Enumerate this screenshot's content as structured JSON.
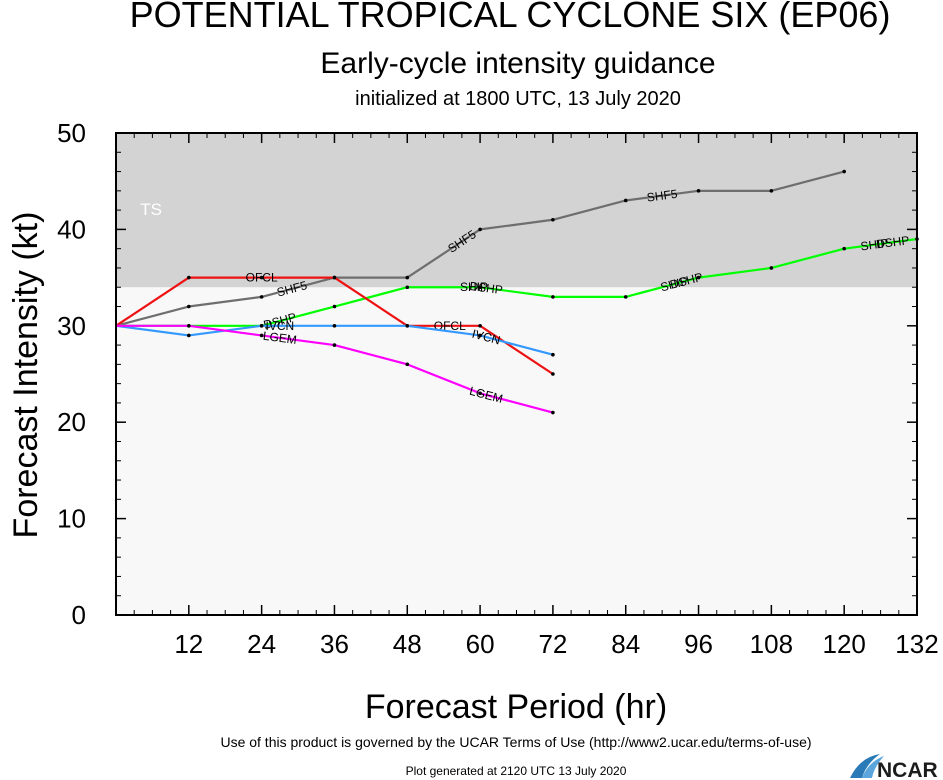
{
  "header": {
    "title": "POTENTIAL TROPICAL CYCLONE SIX (EP06)",
    "subtitle": "Early-cycle intensity guidance",
    "init_line": "initialized at 1800 UTC, 13 July 2020"
  },
  "footer": {
    "terms": "Use of this product is governed by the UCAR Terms of Use (http://www2.ucar.edu/terms-of-use)",
    "generated": "Plot generated at 2120 UTC   13 July 2020",
    "logo_text": "NCAR"
  },
  "chart_data": {
    "type": "line",
    "xlabel": "Forecast Period (hr)",
    "ylabel": "Forecast Intensity (kt)",
    "xlim": [
      0,
      132
    ],
    "ylim": [
      0,
      50
    ],
    "xticks": [
      12,
      24,
      36,
      48,
      60,
      72,
      84,
      96,
      108,
      120,
      132
    ],
    "yticks": [
      0,
      10,
      20,
      30,
      40,
      50
    ],
    "bands": [
      {
        "label": "TS",
        "from": 34,
        "to": 50,
        "color": "#d3d3d3"
      }
    ],
    "below_band_color": "#f8f8f8",
    "series": [
      {
        "name": "SHF5",
        "color": "#6e6e6e",
        "x": [
          0,
          12,
          24,
          36,
          48,
          60,
          72,
          84,
          96,
          108,
          120
        ],
        "values": [
          30,
          32,
          33,
          35,
          35,
          40,
          41,
          43,
          44,
          44,
          46
        ],
        "label_x": [
          29,
          57,
          90
        ]
      },
      {
        "name": "DSHP",
        "color": "#00ff00",
        "x": [
          0,
          12,
          24,
          36,
          48,
          60,
          72,
          84,
          96,
          108,
          120,
          132
        ],
        "values": [
          30,
          30,
          30,
          32,
          34,
          34,
          33,
          33,
          35,
          36,
          38,
          39
        ],
        "label_x": [
          27,
          61,
          94,
          128
        ]
      },
      {
        "name": "SHIP",
        "color": "#00ff00",
        "x": [
          60,
          96,
          120
        ],
        "values": [
          34,
          35,
          38
        ],
        "label_x": [
          59,
          92,
          125
        ],
        "labels_only": true
      },
      {
        "name": "OFCL",
        "color": "#ee1111",
        "x": [
          0,
          12,
          24,
          36,
          48,
          60,
          72
        ],
        "values": [
          30,
          35,
          35,
          35,
          30,
          30,
          25
        ],
        "label_x": [
          24,
          55
        ]
      },
      {
        "name": "IVCN",
        "color": "#3399ff",
        "x": [
          0,
          12,
          24,
          36,
          48,
          60,
          72
        ],
        "values": [
          30,
          29,
          30,
          30,
          30,
          29,
          27
        ],
        "label_x": [
          27,
          61
        ]
      },
      {
        "name": "LGEM",
        "color": "#ff00ff",
        "x": [
          0,
          12,
          24,
          36,
          48,
          60,
          72
        ],
        "values": [
          30,
          30,
          29,
          28,
          26,
          23,
          21
        ],
        "label_x": [
          27,
          61
        ]
      }
    ]
  }
}
